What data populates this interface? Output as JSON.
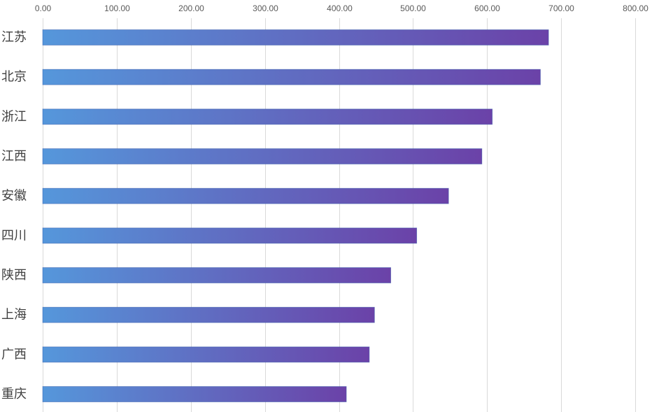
{
  "chart_data": {
    "type": "bar",
    "orientation": "horizontal",
    "categories": [
      "江苏",
      "北京",
      "浙江",
      "江西",
      "安徽",
      "四川",
      "陕西",
      "上海",
      "广西",
      "重庆"
    ],
    "values": [
      683,
      672,
      607,
      593,
      548,
      505,
      470,
      448,
      441,
      410
    ],
    "xlim": [
      0,
      800
    ],
    "x_ticks": [
      "0.00",
      "100.00",
      "200.00",
      "300.00",
      "400.00",
      "500.00",
      "600.00",
      "700.00",
      "800.00"
    ],
    "x_axis_position": "top",
    "grid": true,
    "legend": false,
    "title": "",
    "xlabel": "",
    "ylabel": "",
    "bar_gradient": {
      "start": "#5597db",
      "end": "#6b42a8"
    }
  }
}
